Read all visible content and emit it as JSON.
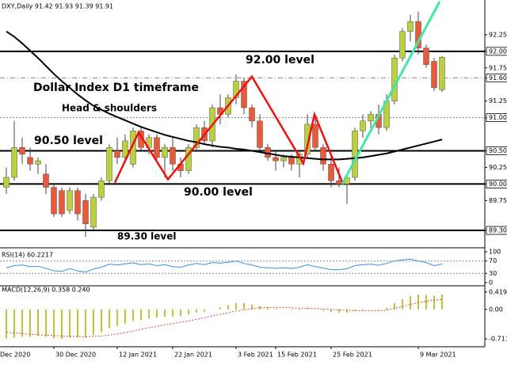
{
  "chart_data": [
    {
      "type": "candlestick",
      "title": "DXY,Daily 91.42 91.93 91.39 91.91",
      "annotations": [
        "92.00 level",
        "Dollar Index D1 timeframe",
        "Head & shoulders",
        "90.50 level",
        "90.00 level",
        "89.30 level"
      ],
      "open": [
        89.95,
        90.1,
        90.55,
        90.4,
        90.3,
        90.15,
        89.95,
        89.9,
        89.6,
        89.9,
        89.75,
        89.35,
        89.8,
        90.05,
        90.5,
        90.4,
        90.3,
        90.8,
        90.55,
        90.7,
        90.4,
        90.55,
        90.3,
        90.2,
        90.55,
        90.85,
        90.65,
        91.15,
        91.05,
        91.3,
        91.55,
        91.15,
        90.95,
        90.55,
        90.4,
        90.35,
        90.4,
        90.3,
        90.45,
        90.9,
        90.55,
        90.3,
        90.05,
        90.0,
        90.1,
        90.8,
        90.95,
        91.05,
        90.85,
        91.25,
        91.9,
        92.3,
        92.45,
        92.05,
        91.85,
        91.42
      ],
      "high": [
        90.25,
        90.95,
        90.7,
        90.55,
        90.4,
        90.3,
        90.0,
        89.95,
        89.95,
        89.95,
        89.85,
        89.85,
        90.1,
        90.6,
        90.7,
        90.75,
        90.85,
        90.85,
        90.75,
        90.75,
        90.6,
        90.7,
        90.4,
        90.6,
        90.9,
        90.95,
        91.2,
        91.35,
        91.35,
        91.65,
        91.6,
        91.2,
        91.05,
        90.6,
        90.5,
        90.45,
        90.45,
        90.5,
        91.05,
        91.0,
        90.6,
        90.4,
        90.25,
        90.15,
        90.85,
        91.05,
        91.1,
        91.2,
        91.35,
        91.95,
        92.35,
        92.55,
        92.6,
        92.1,
        91.9,
        91.93
      ],
      "low": [
        89.85,
        90.05,
        90.3,
        90.2,
        90.15,
        89.85,
        89.5,
        89.5,
        89.55,
        89.45,
        89.2,
        89.3,
        89.75,
        90.0,
        90.3,
        90.35,
        90.25,
        90.5,
        90.45,
        90.35,
        90.1,
        90.2,
        90.1,
        90.15,
        90.5,
        90.6,
        90.55,
        90.9,
        91.0,
        91.2,
        91.05,
        90.85,
        90.5,
        90.35,
        90.2,
        90.25,
        90.2,
        90.1,
        90.4,
        90.5,
        90.2,
        89.95,
        89.95,
        89.7,
        90.05,
        90.7,
        90.85,
        90.75,
        90.8,
        91.2,
        91.85,
        92.15,
        91.95,
        91.75,
        91.4,
        91.39
      ],
      "close": [
        90.1,
        90.55,
        90.45,
        90.3,
        90.35,
        89.95,
        89.55,
        89.55,
        89.9,
        89.55,
        89.4,
        89.8,
        90.05,
        90.55,
        90.4,
        90.65,
        90.8,
        90.55,
        90.7,
        90.4,
        90.55,
        90.3,
        90.2,
        90.55,
        90.85,
        90.65,
        91.15,
        91.05,
        91.3,
        91.55,
        91.15,
        90.95,
        90.55,
        90.4,
        90.35,
        90.4,
        90.3,
        90.45,
        90.9,
        90.55,
        90.3,
        90.05,
        90.0,
        90.1,
        90.8,
        90.95,
        91.05,
        90.85,
        91.25,
        91.9,
        92.3,
        92.45,
        92.05,
        91.8,
        91.45,
        91.91
      ],
      "up_color": "#bcd03c",
      "down_color": "#ea5a38",
      "ma": {
        "color": "#000000",
        "values": [
          92.3,
          92.22,
          92.12,
          92.01,
          91.9,
          91.78,
          91.66,
          91.55,
          91.45,
          91.35,
          91.26,
          91.18,
          91.12,
          91.06,
          91.01,
          90.96,
          90.91,
          90.86,
          90.82,
          90.78,
          90.74,
          90.71,
          90.68,
          90.65,
          90.63,
          90.6,
          90.58,
          90.56,
          90.55,
          90.53,
          90.52,
          90.5,
          90.48,
          90.46,
          90.44,
          90.42,
          90.41,
          90.4,
          90.39,
          90.38,
          90.37,
          90.37,
          90.37,
          90.38,
          90.39,
          90.4,
          90.42,
          90.44,
          90.46,
          90.49,
          90.52,
          90.55,
          90.58,
          90.61,
          90.64,
          90.67
        ]
      },
      "pattern": {
        "color": "#ee1111",
        "points": [
          [
            13.7,
            90.02
          ],
          [
            16.7,
            90.78
          ],
          [
            20.4,
            90.07
          ],
          [
            31,
            91.62
          ],
          [
            37.5,
            90.31
          ],
          [
            38.9,
            91.05
          ],
          [
            42.4,
            90.03
          ]
        ]
      },
      "trendline": {
        "color": "#44e6a8",
        "points": [
          [
            42.4,
            90.0
          ],
          [
            54.7,
            92.75
          ]
        ]
      },
      "ylim": [
        89.05,
        92.75
      ],
      "yticks": [
        {
          "value": 89.3,
          "label": "89.30"
        },
        89.75,
        {
          "value": 90,
          "label": "90.00"
        },
        90.25,
        {
          "value": 90.5,
          "label": "90.50"
        },
        {
          "value": 91,
          "label": "91.00"
        },
        91.25,
        {
          "value": 91.6,
          "label": "91.60"
        },
        91.75,
        {
          "value": 92,
          "label": "92.00"
        },
        92.25
      ],
      "hlines": [
        {
          "value": 92,
          "style": "solid"
        },
        {
          "value": 90.5,
          "style": "solid"
        },
        {
          "value": 90,
          "style": "solid"
        },
        {
          "value": 89.3,
          "style": "solid"
        },
        {
          "value": 91.6,
          "style": "dashdot"
        },
        {
          "value": 91,
          "style": "dotted"
        }
      ]
    },
    {
      "type": "line",
      "title": "RSI(14) 60.2217",
      "color": "#3a8ee6",
      "values": [
        48,
        55,
        57,
        52,
        53,
        46,
        38,
        37,
        45,
        38,
        34,
        44,
        50,
        60,
        57,
        61,
        64,
        58,
        61,
        55,
        58,
        52,
        50,
        57,
        62,
        58,
        65,
        63,
        66,
        70,
        62,
        57,
        50,
        48,
        46,
        48,
        46,
        50,
        58,
        52,
        47,
        42,
        42,
        45,
        55,
        58,
        60,
        56,
        62,
        70,
        74,
        76,
        70,
        65,
        55,
        60.2217
      ],
      "ylim": [
        0,
        100
      ],
      "yticks": [
        0,
        30,
        70,
        100
      ],
      "hlines": [
        {
          "value": 70,
          "style": "dotted"
        },
        {
          "value": 30,
          "style": "dotted"
        }
      ]
    },
    {
      "type": "bar",
      "title": "MACD(12,26,9) 0.358 0.240",
      "color": "#b8c832",
      "values": [
        -0.7,
        -0.68,
        -0.66,
        -0.66,
        -0.64,
        -0.66,
        -0.7,
        -0.71,
        -0.68,
        -0.68,
        -0.68,
        -0.62,
        -0.55,
        -0.45,
        -0.4,
        -0.34,
        -0.28,
        -0.26,
        -0.22,
        -0.2,
        -0.18,
        -0.17,
        -0.16,
        -0.12,
        -0.08,
        -0.06,
        0.0,
        0.05,
        0.1,
        0.15,
        0.15,
        0.12,
        0.08,
        0.05,
        0.02,
        0.0,
        -0.02,
        -0.02,
        0.02,
        0.0,
        -0.03,
        -0.06,
        -0.08,
        -0.08,
        -0.04,
        -0.02,
        0.0,
        -0.01,
        0.04,
        0.15,
        0.25,
        0.33,
        0.36,
        0.35,
        0.33,
        0.358
      ],
      "signal": {
        "color": "#e04040",
        "values": [
          -0.55,
          -0.57,
          -0.58,
          -0.6,
          -0.61,
          -0.62,
          -0.63,
          -0.64,
          -0.65,
          -0.65,
          -0.66,
          -0.65,
          -0.64,
          -0.62,
          -0.59,
          -0.56,
          -0.52,
          -0.48,
          -0.44,
          -0.41,
          -0.37,
          -0.34,
          -0.31,
          -0.28,
          -0.24,
          -0.2,
          -0.16,
          -0.12,
          -0.08,
          -0.04,
          -0.01,
          0.02,
          0.04,
          0.05,
          0.05,
          0.05,
          0.04,
          0.03,
          0.03,
          0.02,
          0.01,
          0.0,
          -0.01,
          -0.02,
          -0.03,
          -0.03,
          -0.03,
          -0.03,
          -0.02,
          0.02,
          0.07,
          0.12,
          0.16,
          0.2,
          0.22,
          0.24
        ]
      },
      "ylim": [
        -0.9,
        0.55
      ],
      "yticks": [
        -0.711,
        {
          "value": 0,
          "label": "0.00"
        },
        0.419
      ],
      "xticks": [
        {
          "value": -1,
          "label": "Dec 2020"
        },
        {
          "value": 6,
          "label": "30 Dec 2020"
        },
        {
          "value": 14,
          "label": "12 Jan 2021"
        },
        {
          "value": 21,
          "label": "22 Jan 2021"
        },
        {
          "value": 29,
          "label": "3 Feb 2021"
        },
        {
          "value": 34,
          "label": "15 Feb 2021"
        },
        {
          "value": 41,
          "label": "25 Feb 2021"
        },
        {
          "value": 52,
          "label": "9 Mar 2021"
        }
      ]
    }
  ]
}
